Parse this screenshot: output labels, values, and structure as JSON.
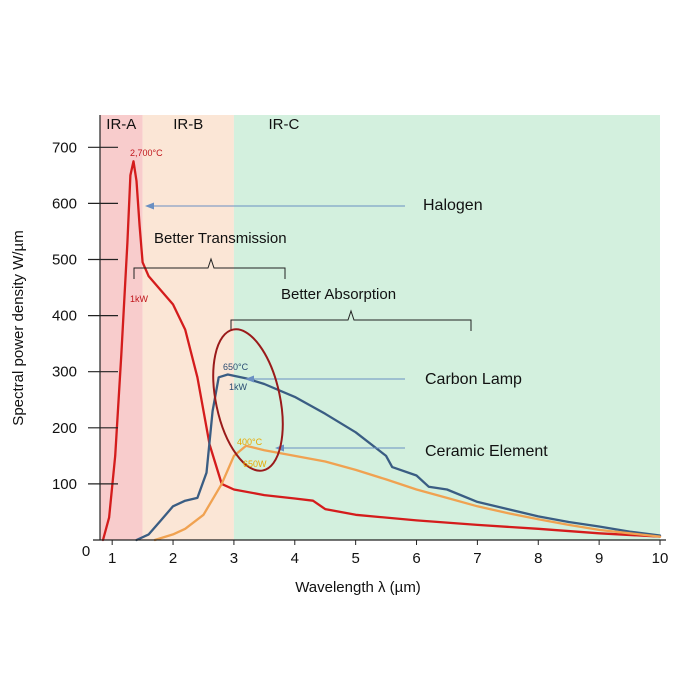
{
  "chart_data": {
    "type": "line",
    "xlabel": "Wavelength λ (µm)",
    "ylabel": "Spectral power density W/µm",
    "xlim": [
      0.8,
      10
    ],
    "ylim": [
      0,
      730
    ],
    "x_ticks": [
      1,
      2,
      3,
      4,
      5,
      6,
      7,
      8,
      9,
      10
    ],
    "y_ticks": [
      100,
      200,
      300,
      400,
      500,
      600,
      700
    ],
    "origin_label": "0",
    "grid": false,
    "bands": [
      {
        "label": "IR-A",
        "from": 0.8,
        "to": 1.5,
        "color": "#f8cccc"
      },
      {
        "label": "IR-B",
        "from": 1.5,
        "to": 3.0,
        "color": "#fbe6d6"
      },
      {
        "label": "IR-C",
        "from": 3.0,
        "to": 10.0,
        "color": "#d3f0de"
      }
    ],
    "series": [
      {
        "color": "#d41c1c",
        "points": [
          [
            0.85,
            0
          ],
          [
            0.95,
            40
          ],
          [
            1.05,
            150
          ],
          [
            1.15,
            330
          ],
          [
            1.25,
            530
          ],
          [
            1.3,
            650
          ],
          [
            1.35,
            675
          ],
          [
            1.4,
            640
          ],
          [
            1.45,
            560
          ],
          [
            1.5,
            495
          ],
          [
            1.6,
            470
          ],
          [
            1.8,
            445
          ],
          [
            2.0,
            420
          ],
          [
            2.2,
            375
          ],
          [
            2.4,
            290
          ],
          [
            2.6,
            170
          ],
          [
            2.8,
            100
          ],
          [
            3.0,
            90
          ],
          [
            3.5,
            80
          ],
          [
            4.0,
            74
          ],
          [
            4.3,
            70
          ],
          [
            4.5,
            55
          ],
          [
            5.0,
            45
          ],
          [
            6.0,
            35
          ],
          [
            7.0,
            27
          ],
          [
            8.0,
            20
          ],
          [
            9.0,
            12
          ],
          [
            10.0,
            6
          ]
        ]
      },
      {
        "color": "#3a5d83",
        "points": [
          [
            1.4,
            0
          ],
          [
            1.6,
            10
          ],
          [
            1.8,
            35
          ],
          [
            2.0,
            60
          ],
          [
            2.2,
            70
          ],
          [
            2.4,
            75
          ],
          [
            2.55,
            120
          ],
          [
            2.65,
            230
          ],
          [
            2.75,
            290
          ],
          [
            2.9,
            295
          ],
          [
            3.2,
            288
          ],
          [
            3.5,
            278
          ],
          [
            4.0,
            255
          ],
          [
            4.5,
            225
          ],
          [
            5.0,
            192
          ],
          [
            5.5,
            150
          ],
          [
            5.6,
            130
          ],
          [
            6.0,
            115
          ],
          [
            6.2,
            95
          ],
          [
            6.5,
            90
          ],
          [
            7.0,
            68
          ],
          [
            7.5,
            55
          ],
          [
            8.0,
            42
          ],
          [
            8.5,
            32
          ],
          [
            9.0,
            24
          ],
          [
            9.5,
            15
          ],
          [
            10.0,
            8
          ]
        ]
      },
      {
        "color": "#f0a251",
        "points": [
          [
            1.7,
            0
          ],
          [
            2.0,
            10
          ],
          [
            2.2,
            20
          ],
          [
            2.5,
            45
          ],
          [
            2.8,
            100
          ],
          [
            3.0,
            150
          ],
          [
            3.2,
            168
          ],
          [
            3.5,
            160
          ],
          [
            4.0,
            150
          ],
          [
            4.5,
            140
          ],
          [
            5.0,
            125
          ],
          [
            5.5,
            108
          ],
          [
            6.0,
            90
          ],
          [
            6.5,
            75
          ],
          [
            7.0,
            60
          ],
          [
            7.5,
            48
          ],
          [
            8.0,
            37
          ],
          [
            8.5,
            27
          ],
          [
            9.0,
            18
          ],
          [
            9.5,
            12
          ],
          [
            10.0,
            6
          ]
        ]
      }
    ],
    "annotations": {
      "halogen": "Halogen",
      "carbon_lamp": "Carbon Lamp",
      "ceramic_element": "Ceramic Element",
      "better_transmission": "Better Transmission",
      "better_absorption": "Better Absorption",
      "halogen_temp": "2,700°C",
      "halogen_power": "1kW",
      "carbon_temp": "650°C",
      "carbon_power": "1kW",
      "ceramic_temp": "400°C",
      "ceramic_power": "650W"
    }
  }
}
